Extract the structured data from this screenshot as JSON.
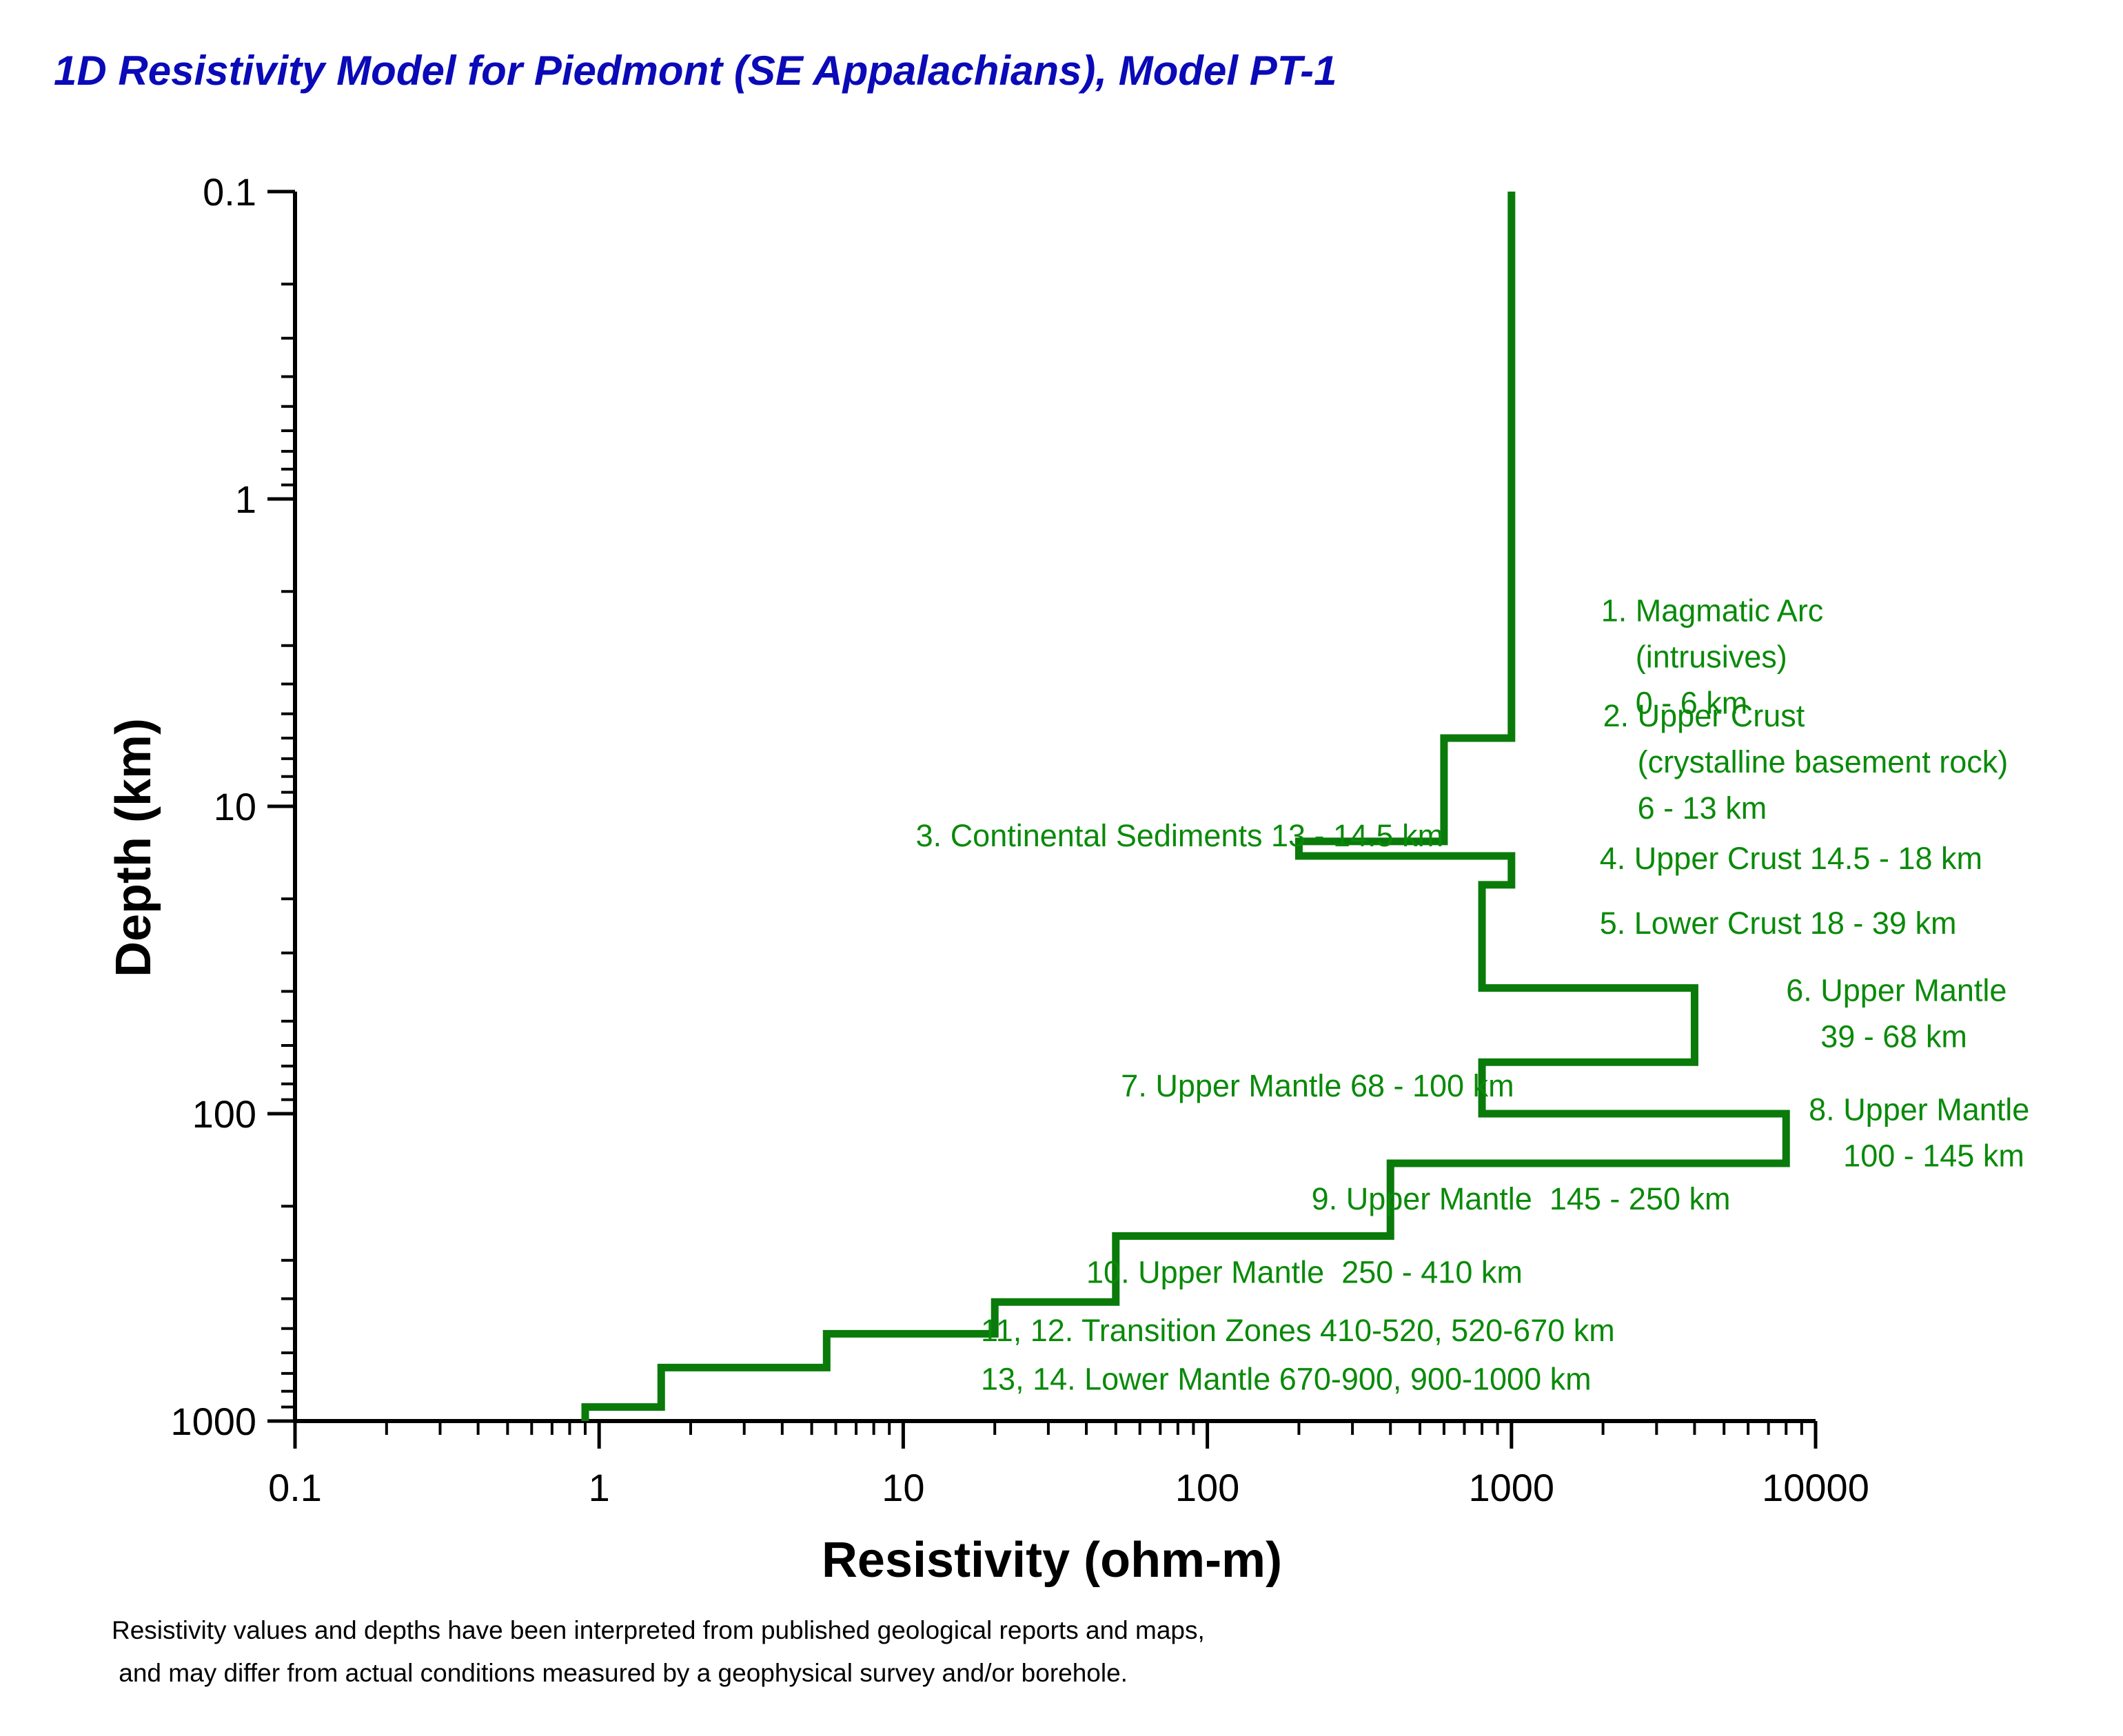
{
  "chart_data": {
    "type": "line",
    "title": "1D Resistivity Model for Piedmont (SE Appalachians),  Model PT-1",
    "xlabel": "Resistivity (ohm-m)",
    "ylabel": "Depth (km)",
    "x_scale": "log",
    "y_scale": "log",
    "y_inverted": true,
    "xlim": [
      0.1,
      10000
    ],
    "ylim": [
      0.1,
      1000
    ],
    "x_tick_labels": [
      "0.1",
      "1",
      "10",
      "100",
      "1000",
      "10000"
    ],
    "y_tick_labels": [
      "0.1",
      "1",
      "10",
      "100",
      "1000"
    ],
    "grid": false,
    "series": [
      {
        "color": "#0a7a0a",
        "layers": [
          {
            "resistivity": 1000,
            "top": 0.1,
            "bottom": 6
          },
          {
            "resistivity": 600,
            "top": 6,
            "bottom": 13
          },
          {
            "resistivity": 200,
            "top": 13,
            "bottom": 14.5
          },
          {
            "resistivity": 1000,
            "top": 14.5,
            "bottom": 18
          },
          {
            "resistivity": 800,
            "top": 18,
            "bottom": 39
          },
          {
            "resistivity": 4000,
            "top": 39,
            "bottom": 68
          },
          {
            "resistivity": 800,
            "top": 68,
            "bottom": 100
          },
          {
            "resistivity": 8000,
            "top": 100,
            "bottom": 145
          },
          {
            "resistivity": 400,
            "top": 145,
            "bottom": 250
          },
          {
            "resistivity": 50,
            "top": 250,
            "bottom": 410
          },
          {
            "resistivity": 20,
            "top": 410,
            "bottom": 520
          },
          {
            "resistivity": 5.6,
            "top": 520,
            "bottom": 670
          },
          {
            "resistivity": 1.6,
            "top": 670,
            "bottom": 900
          },
          {
            "resistivity": 0.9,
            "top": 900,
            "bottom": 1000
          }
        ]
      }
    ],
    "annotations": [
      {
        "lines": [
          "1. Magmatic Arc",
          "    (intrusives)",
          "    0 - 6 km"
        ],
        "x": 1970,
        "depth": 2.5
      },
      {
        "lines": [
          "2. Upper Crust",
          "    (crystalline basement rock)",
          "    6 - 13 km"
        ],
        "x": 2000,
        "depth": 5.5
      },
      {
        "lines": [
          "3. Continental Sediments 13 - 14.5 km"
        ],
        "x": 11,
        "depth": 13.5
      },
      {
        "lines": [
          "4. Upper Crust 14.5 - 18 km"
        ],
        "x": 1950,
        "depth": 16
      },
      {
        "lines": [
          "5. Lower Crust 18 - 39 km"
        ],
        "x": 1950,
        "depth": 26
      },
      {
        "lines": [
          "6. Upper Mantle",
          "    39 - 68 km"
        ],
        "x": 8000,
        "depth": 43
      },
      {
        "lines": [
          "7. Upper Mantle 68 - 100 km"
        ],
        "x": 52,
        "depth": 88
      },
      {
        "lines": [
          "8. Upper Mantle",
          "    100 - 145 km"
        ],
        "x": 9500,
        "depth": 105
      },
      {
        "lines": [
          "9. Upper Mantle  145 - 250 km"
        ],
        "x": 220,
        "depth": 205
      },
      {
        "lines": [
          "10. Upper Mantle  250 - 410 km"
        ],
        "x": 40,
        "depth": 355
      },
      {
        "lines": [
          "11, 12. Transition Zones 410-520, 520-670 km"
        ],
        "x": 18,
        "depth": 550
      },
      {
        "lines": [
          "13, 14. Lower Mantle 670-900, 900-1000 km"
        ],
        "x": 18,
        "depth": 790
      }
    ]
  },
  "footnote": [
    "Resistivity values and depths have been interpreted from published geological reports and maps,",
    " and may differ from actual conditions measured by a geophysical survey and/or borehole."
  ]
}
